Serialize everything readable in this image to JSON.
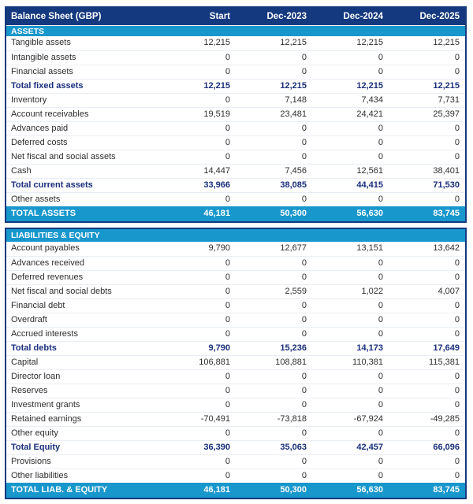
{
  "chart_data": {
    "type": "table",
    "title": "Balance Sheet (GBP)",
    "columns": [
      "Start",
      "Dec-2023",
      "Dec-2024",
      "Dec-2025"
    ],
    "sections": [
      {
        "label": "ASSETS",
        "rows": [
          {
            "label": "Tangible assets",
            "values": [
              "12,215",
              "12,215",
              "12,215",
              "12,215"
            ],
            "emphasis": false
          },
          {
            "label": "Intangible assets",
            "values": [
              "0",
              "0",
              "0",
              "0"
            ],
            "emphasis": false
          },
          {
            "label": "Financial assets",
            "values": [
              "0",
              "0",
              "0",
              "0"
            ],
            "emphasis": false
          },
          {
            "label": "Total fixed assets",
            "values": [
              "12,215",
              "12,215",
              "12,215",
              "12,215"
            ],
            "emphasis": true
          },
          {
            "label": "Inventory",
            "values": [
              "0",
              "7,148",
              "7,434",
              "7,731"
            ],
            "emphasis": false
          },
          {
            "label": "Account receivables",
            "values": [
              "19,519",
              "23,481",
              "24,421",
              "25,397"
            ],
            "emphasis": false
          },
          {
            "label": "Advances paid",
            "values": [
              "0",
              "0",
              "0",
              "0"
            ],
            "emphasis": false
          },
          {
            "label": "Deferred costs",
            "values": [
              "0",
              "0",
              "0",
              "0"
            ],
            "emphasis": false
          },
          {
            "label": "Net fiscal and social assets",
            "values": [
              "0",
              "0",
              "0",
              "0"
            ],
            "emphasis": false
          },
          {
            "label": "Cash",
            "values": [
              "14,447",
              "7,456",
              "12,561",
              "38,401"
            ],
            "emphasis": false
          },
          {
            "label": "Total current assets",
            "values": [
              "33,966",
              "38,085",
              "44,415",
              "71,530"
            ],
            "emphasis": true
          },
          {
            "label": "Other assets",
            "values": [
              "0",
              "0",
              "0",
              "0"
            ],
            "emphasis": false
          }
        ],
        "total": {
          "label": "TOTAL ASSETS",
          "values": [
            "46,181",
            "50,300",
            "56,630",
            "83,745"
          ]
        }
      },
      {
        "label": "LIABILITIES & EQUITY",
        "rows": [
          {
            "label": "Account payables",
            "values": [
              "9,790",
              "12,677",
              "13,151",
              "13,642"
            ],
            "emphasis": false
          },
          {
            "label": "Advances received",
            "values": [
              "0",
              "0",
              "0",
              "0"
            ],
            "emphasis": false
          },
          {
            "label": "Deferred revenues",
            "values": [
              "0",
              "0",
              "0",
              "0"
            ],
            "emphasis": false
          },
          {
            "label": "Net fiscal and social debts",
            "values": [
              "0",
              "2,559",
              "1,022",
              "4,007"
            ],
            "emphasis": false
          },
          {
            "label": "Financial debt",
            "values": [
              "0",
              "0",
              "0",
              "0"
            ],
            "emphasis": false
          },
          {
            "label": "Overdraft",
            "values": [
              "0",
              "0",
              "0",
              "0"
            ],
            "emphasis": false
          },
          {
            "label": "Accrued interests",
            "values": [
              "0",
              "0",
              "0",
              "0"
            ],
            "emphasis": false
          },
          {
            "label": "Total debts",
            "values": [
              "9,790",
              "15,236",
              "14,173",
              "17,649"
            ],
            "emphasis": true
          },
          {
            "label": "Capital",
            "values": [
              "106,881",
              "108,881",
              "110,381",
              "115,381"
            ],
            "emphasis": false
          },
          {
            "label": "Director loan",
            "values": [
              "0",
              "0",
              "0",
              "0"
            ],
            "emphasis": false
          },
          {
            "label": "Reserves",
            "values": [
              "0",
              "0",
              "0",
              "0"
            ],
            "emphasis": false
          },
          {
            "label": "Investment grants",
            "values": [
              "0",
              "0",
              "0",
              "0"
            ],
            "emphasis": false
          },
          {
            "label": "Retained earnings",
            "values": [
              "-70,491",
              "-73,818",
              "-67,924",
              "-49,285"
            ],
            "emphasis": false
          },
          {
            "label": "Other equity",
            "values": [
              "0",
              "0",
              "0",
              "0"
            ],
            "emphasis": false
          },
          {
            "label": "Total Equity",
            "values": [
              "36,390",
              "35,063",
              "42,457",
              "66,096"
            ],
            "emphasis": true
          },
          {
            "label": "Provisions",
            "values": [
              "0",
              "0",
              "0",
              "0"
            ],
            "emphasis": false
          },
          {
            "label": "Other liabilities",
            "values": [
              "0",
              "0",
              "0",
              "0"
            ],
            "emphasis": false
          }
        ],
        "total": {
          "label": "TOTAL LIAB. & EQUITY",
          "values": [
            "46,181",
            "50,300",
            "56,630",
            "83,745"
          ]
        }
      }
    ]
  },
  "colors": {
    "header_navy": "#14397f",
    "section_blue": "#1897cd",
    "total_text_navy": "#1b2f7d",
    "row_border": "#e9eef4",
    "body_text": "#2e2e2e"
  }
}
